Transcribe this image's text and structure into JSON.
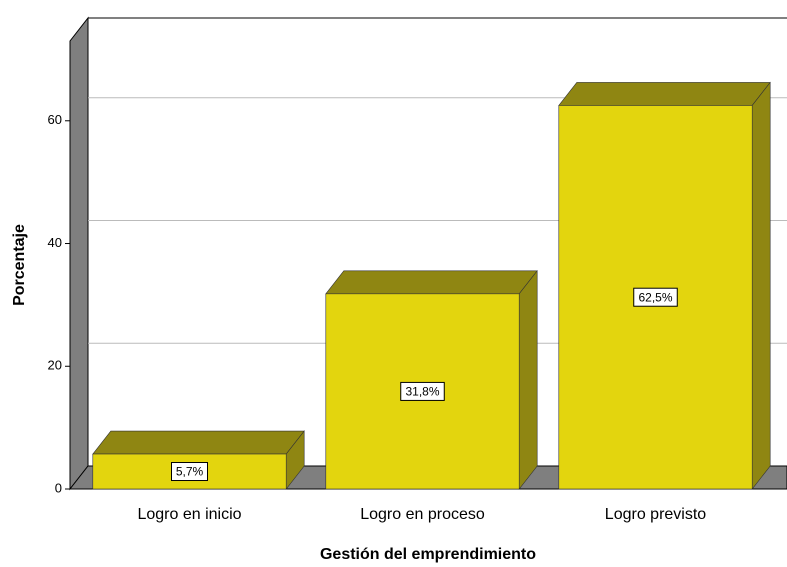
{
  "chart_data": {
    "type": "bar3d",
    "x_label": "Gestión del emprendimiento",
    "y_label": "Porcentaje",
    "categories": [
      "Logro en inicio",
      "Logro en proceso",
      "Logro previsto"
    ],
    "values": [
      5.7,
      31.8,
      62.5
    ],
    "value_labels": [
      "5,7%",
      "31,8%",
      "62,5%"
    ],
    "color": "#e3d50e",
    "ylim": [
      0,
      73
    ],
    "yticks": [
      0,
      20,
      40,
      60
    ],
    "grid": true
  }
}
